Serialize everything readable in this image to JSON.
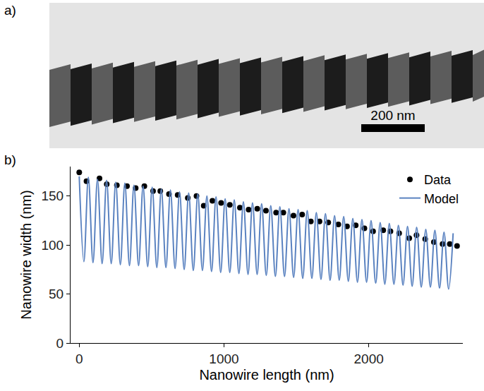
{
  "panel_a": {
    "label": "a)",
    "scale_bar": "200 nm"
  },
  "chart_data": {
    "panel_label": "b)",
    "type": "scatter",
    "x_label": "Nanowire length (nm)",
    "y_label": "Nanowire width (nm)",
    "xlim": [
      -60,
      2650
    ],
    "ylim": [
      0,
      180
    ],
    "xticks": [
      0,
      1000,
      2000
    ],
    "yticks": [
      0,
      50,
      100,
      150
    ],
    "grid": false,
    "legend": "top right",
    "series": [
      {
        "name": "Data",
        "type": "scatter",
        "marker": "circle",
        "color": "#000000",
        "x": [
          0,
          50,
          140,
          190,
          260,
          330,
          390,
          450,
          510,
          560,
          620,
          680,
          750,
          810,
          860,
          920,
          980,
          1040,
          1110,
          1170,
          1230,
          1290,
          1360,
          1410,
          1480,
          1540,
          1600,
          1660,
          1720,
          1790,
          1850,
          1910,
          1970,
          2030,
          2100,
          2150,
          2210,
          2280,
          2330,
          2390,
          2450,
          2510,
          2560,
          2610
        ],
        "values": [
          174,
          165,
          168,
          162,
          161,
          160,
          158,
          160,
          155,
          155,
          152,
          151,
          148,
          150,
          140,
          145,
          143,
          141,
          138,
          136,
          137,
          135,
          133,
          133,
          130,
          131,
          124,
          124,
          123,
          121,
          119,
          120,
          117,
          114,
          115,
          114,
          112,
          107,
          110,
          106,
          103,
          101,
          101,
          99
        ]
      },
      {
        "name": "Model",
        "type": "line",
        "line_style": "solid",
        "color": "#5a82c0",
        "x": [
          0,
          32,
          63,
          95,
          126,
          158,
          189,
          221,
          252,
          284,
          315,
          347,
          378,
          410,
          441,
          473,
          504,
          536,
          567,
          599,
          630,
          662,
          693,
          725,
          756,
          788,
          819,
          851,
          882,
          914,
          945,
          977,
          1008,
          1040,
          1071,
          1103,
          1134,
          1166,
          1197,
          1229,
          1260,
          1292,
          1323,
          1355,
          1386,
          1418,
          1449,
          1481,
          1512,
          1544,
          1575,
          1607,
          1638,
          1670,
          1701,
          1733,
          1764,
          1796,
          1827,
          1859,
          1890,
          1922,
          1953,
          1985,
          2016,
          2048,
          2079,
          2111,
          2142,
          2174,
          2205,
          2237,
          2268,
          2300,
          2331,
          2363,
          2394,
          2426,
          2457,
          2489,
          2520,
          2552,
          2583
        ],
        "values": [
          170,
          83,
          169,
          82,
          167,
          81,
          166,
          81,
          164,
          80,
          163,
          79,
          161,
          79,
          160,
          78,
          159,
          77,
          157,
          77,
          156,
          76,
          154,
          75,
          153,
          74,
          152,
          74,
          150,
          73,
          149,
          72,
          147,
          72,
          146,
          71,
          144,
          70,
          143,
          70,
          142,
          69,
          140,
          68,
          139,
          68,
          137,
          67,
          136,
          66,
          135,
          66,
          133,
          65,
          132,
          64,
          130,
          64,
          129,
          63,
          127,
          62,
          126,
          62,
          125,
          61,
          123,
          60,
          122,
          60,
          120,
          59,
          119,
          58,
          118,
          57,
          116,
          57,
          115,
          56,
          113,
          55,
          112
        ]
      }
    ]
  }
}
